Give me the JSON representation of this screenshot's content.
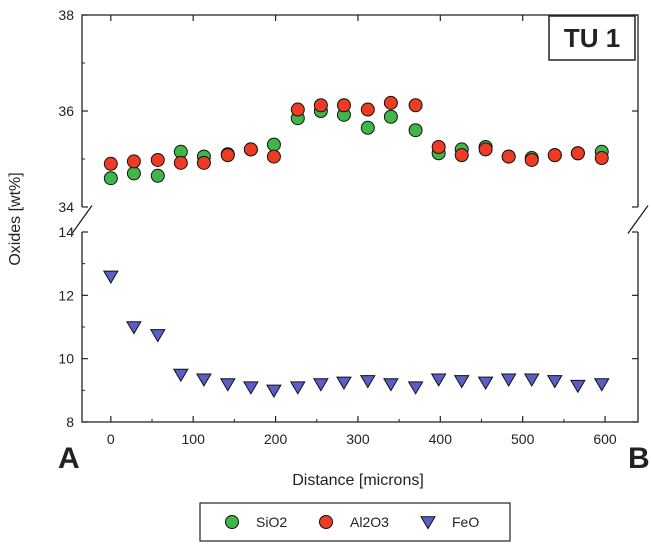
{
  "chart_data": {
    "type": "scatter",
    "title": "TU 1",
    "xlabel": "Distance  [microns]",
    "ylabel": "Oxides [wt%]",
    "end_labels": {
      "left": "A",
      "right": "B"
    },
    "xlim": [
      -35,
      640
    ],
    "x_ticks": [
      0,
      100,
      200,
      300,
      400,
      500,
      600
    ],
    "upper_panel": {
      "ylim": [
        34,
        38
      ],
      "y_ticks": [
        34,
        36,
        38
      ]
    },
    "lower_panel": {
      "ylim": [
        8,
        14
      ],
      "y_ticks": [
        8,
        10,
        12,
        14
      ]
    },
    "axis_break": true,
    "legend_position": "bottom-center",
    "x": [
      0,
      28,
      57,
      85,
      113,
      142,
      170,
      198,
      227,
      255,
      283,
      312,
      340,
      370,
      398,
      426,
      455,
      483,
      511,
      539,
      567,
      596
    ],
    "series": [
      {
        "name": "SiO2",
        "panel": "upper",
        "marker": "circle",
        "color": "#3fb54a",
        "values": [
          34.6,
          34.7,
          34.65,
          35.15,
          35.05,
          35.1,
          35.2,
          35.3,
          35.85,
          36.0,
          35.92,
          35.65,
          35.88,
          35.6,
          35.12,
          35.2,
          35.25,
          35.05,
          35.02,
          35.08,
          35.12,
          35.15
        ]
      },
      {
        "name": "Al2O3",
        "panel": "upper",
        "marker": "circle",
        "color": "#ee3b24",
        "values": [
          34.9,
          34.95,
          34.98,
          34.92,
          34.92,
          35.08,
          35.2,
          35.05,
          36.03,
          36.12,
          36.12,
          36.03,
          36.17,
          36.12,
          35.25,
          35.08,
          35.2,
          35.05,
          34.98,
          35.08,
          35.12,
          35.02
        ]
      },
      {
        "name": "FeO",
        "panel": "lower",
        "marker": "triangle-down",
        "color": "#5a5fc8",
        "values": [
          12.6,
          11.0,
          10.75,
          9.5,
          9.35,
          9.2,
          9.1,
          9.0,
          9.1,
          9.2,
          9.25,
          9.3,
          9.2,
          9.1,
          9.35,
          9.3,
          9.25,
          9.35,
          9.35,
          9.3,
          9.15,
          9.2
        ]
      }
    ]
  }
}
